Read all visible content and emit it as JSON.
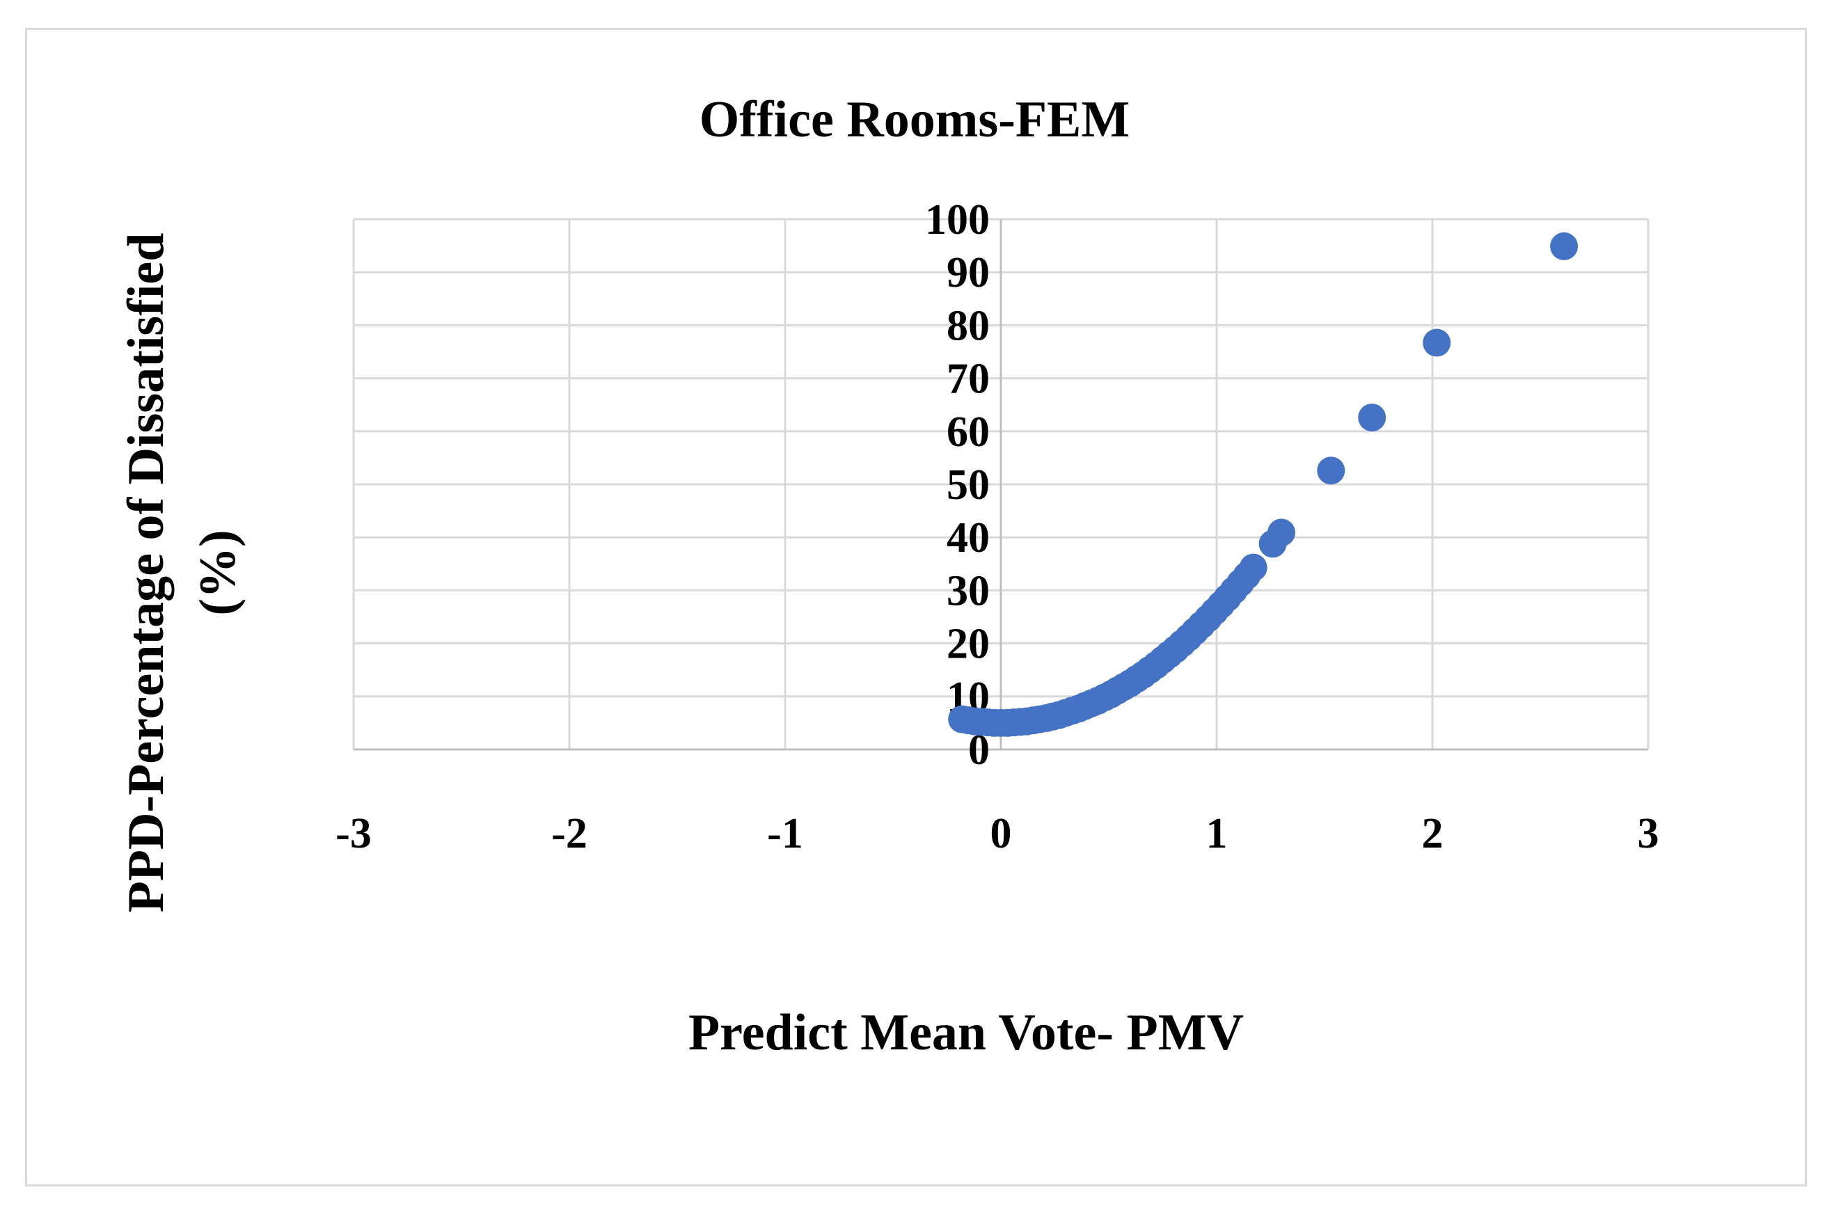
{
  "chart_data": {
    "type": "scatter",
    "title": "Office Rooms-FEM",
    "xlabel": "Predict Mean Vote- PMV",
    "ylabel_lines": [
      "PPD-Percentage of Dissatisfied",
      "(%)"
    ],
    "xlim": [
      -3,
      3
    ],
    "ylim": [
      0,
      100
    ],
    "x_ticks": [
      "-3",
      "-2",
      "-1",
      "0",
      "1",
      "2",
      "3"
    ],
    "y_ticks": [
      "0",
      "10",
      "20",
      "30",
      "40",
      "50",
      "60",
      "70",
      "80",
      "90",
      "100"
    ],
    "grid": true,
    "marker_color": "#4472C4",
    "gridline_color": "#d9d9d9",
    "axis_color": "#bfbfbf",
    "series": [
      {
        "points": [
          [
            -0.18,
            5.7
          ],
          [
            -0.15,
            5.5
          ],
          [
            -0.12,
            5.3
          ],
          [
            -0.09,
            5.2
          ],
          [
            -0.06,
            5.1
          ],
          [
            -0.03,
            5.0
          ],
          [
            0.0,
            5.0
          ],
          [
            0.03,
            5.0
          ],
          [
            0.06,
            5.1
          ],
          [
            0.09,
            5.2
          ],
          [
            0.12,
            5.3
          ],
          [
            0.15,
            5.5
          ],
          [
            0.18,
            5.7
          ],
          [
            0.21,
            5.9
          ],
          [
            0.24,
            6.2
          ],
          [
            0.27,
            6.5
          ],
          [
            0.3,
            6.9
          ],
          [
            0.33,
            7.3
          ],
          [
            0.36,
            7.7
          ],
          [
            0.39,
            8.2
          ],
          [
            0.42,
            8.7
          ],
          [
            0.45,
            9.2
          ],
          [
            0.48,
            9.8
          ],
          [
            0.51,
            10.4
          ],
          [
            0.54,
            11.1
          ],
          [
            0.57,
            11.8
          ],
          [
            0.6,
            12.5
          ],
          [
            0.63,
            13.3
          ],
          [
            0.66,
            14.1
          ],
          [
            0.69,
            15.0
          ],
          [
            0.72,
            15.9
          ],
          [
            0.75,
            16.9
          ],
          [
            0.78,
            17.9
          ],
          [
            0.81,
            18.9
          ],
          [
            0.84,
            20.0
          ],
          [
            0.87,
            21.1
          ],
          [
            0.9,
            22.3
          ],
          [
            0.93,
            23.5
          ],
          [
            0.96,
            24.7
          ],
          [
            0.99,
            26.0
          ],
          [
            1.02,
            27.3
          ],
          [
            1.05,
            28.6
          ],
          [
            1.08,
            30.0
          ],
          [
            1.11,
            31.4
          ],
          [
            1.14,
            32.8
          ],
          [
            1.17,
            34.3
          ],
          [
            1.26,
            38.8
          ],
          [
            1.3,
            40.9
          ],
          [
            1.53,
            52.6
          ],
          [
            1.72,
            62.6
          ],
          [
            2.02,
            76.7
          ],
          [
            2.61,
            94.9
          ]
        ]
      }
    ]
  }
}
